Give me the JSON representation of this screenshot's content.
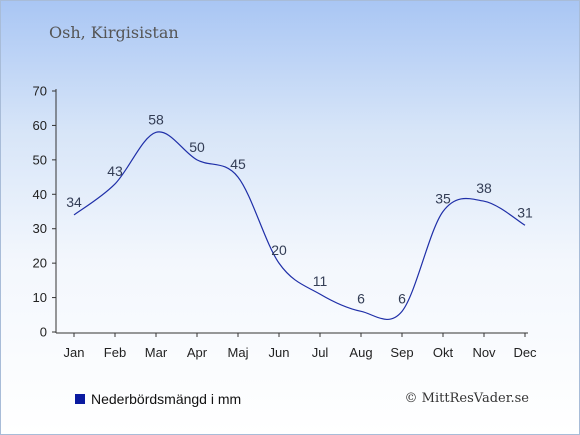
{
  "chart_data": {
    "type": "line",
    "title": "Osh, Kirgisistan",
    "categories": [
      "Jan",
      "Feb",
      "Mar",
      "Apr",
      "Maj",
      "Jun",
      "Jul",
      "Aug",
      "Sep",
      "Okt",
      "Nov",
      "Dec"
    ],
    "series": [
      {
        "name": "Nederbördsmängd i mm",
        "values": [
          34,
          43,
          58,
          50,
          45,
          20,
          11,
          6,
          6,
          35,
          38,
          31
        ]
      }
    ],
    "ylim": [
      0,
      70
    ],
    "yticks": [
      0,
      10,
      20,
      30,
      40,
      50,
      60,
      70
    ],
    "grid": false,
    "legend_position": "bottom-left"
  },
  "colors": {
    "line": "#1f2fa8",
    "legend_swatch": "#0a1aa0",
    "axis": "#333333"
  },
  "credit": "© MittResVader.se"
}
